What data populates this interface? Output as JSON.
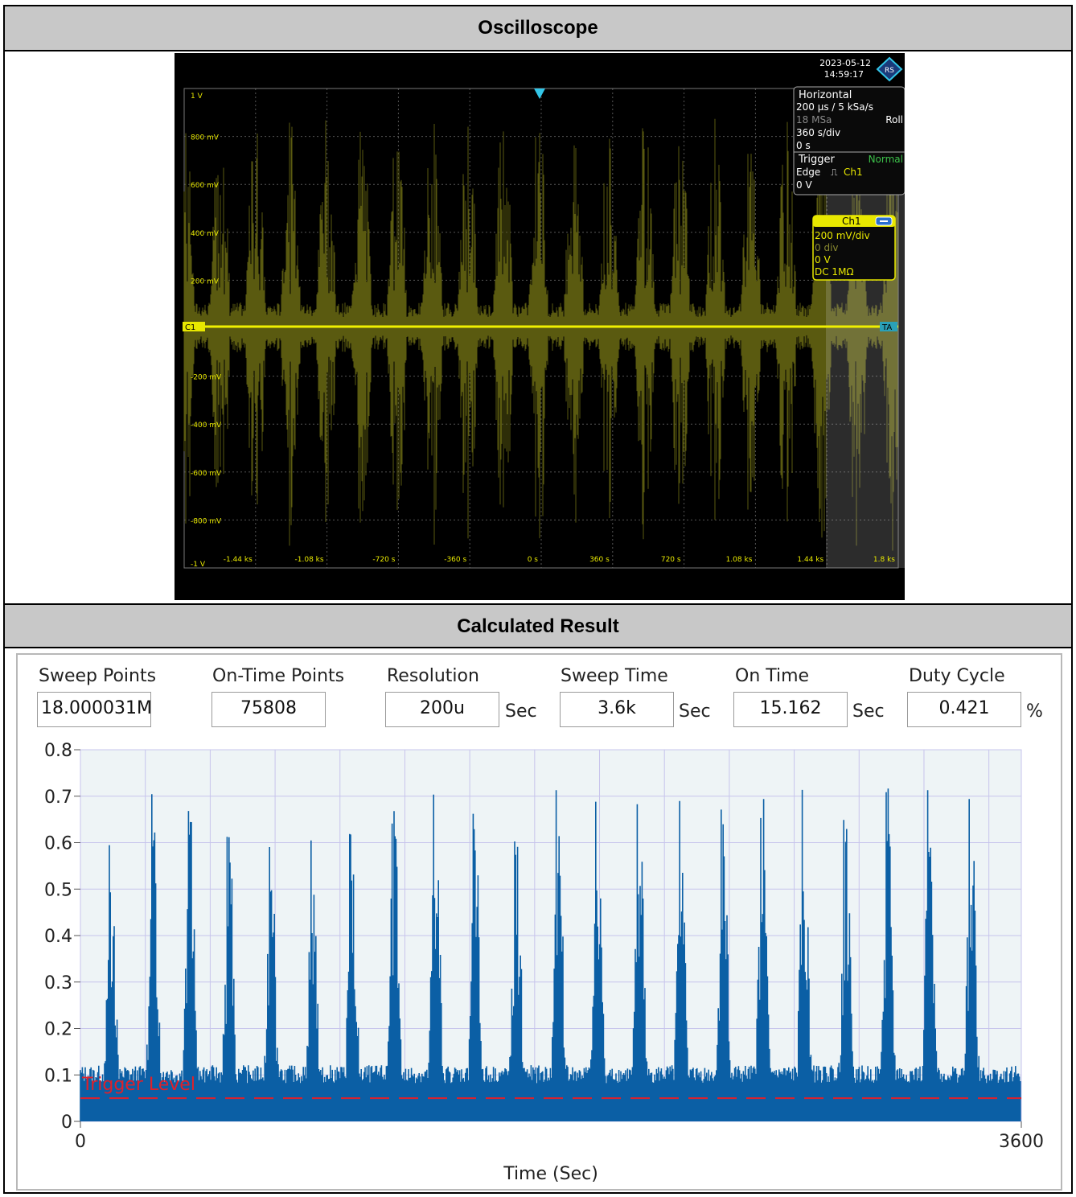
{
  "headers": {
    "oscilloscope": "Oscilloscope",
    "calculated": "Calculated Result"
  },
  "scope": {
    "date": "2023-05-12",
    "time": "14:59:17",
    "horizontal": {
      "title": "Horizontal",
      "rate": "200 µs / 5 kSa/s",
      "points": "18 MSa",
      "mode": "Roll",
      "scale": "360 s/div",
      "position": "0 s"
    },
    "trigger": {
      "title": "Trigger",
      "mode": "Normal",
      "type": "Edge",
      "source": "Ch1",
      "level": "0 V"
    },
    "ch1": {
      "name": "Ch1",
      "scale": "200 mV/div",
      "offset_div": "0 div",
      "offset_v": "0 V",
      "coupling": "DC 1MΩ"
    },
    "y_ticks": [
      "1 V",
      "800 mV",
      "600 mV",
      "400 mV",
      "200 mV",
      "-200 mV",
      "-400 mV",
      "-600 mV",
      "-800 mV",
      "-1 V"
    ],
    "x_ticks": [
      "-1.44 ks",
      "-1.08 ks",
      "-720 s",
      "-360 s",
      "0 s",
      "360 s",
      "720 s",
      "1.08 ks",
      "1.44 ks",
      "1.8 ks"
    ],
    "ch_marker": "C1",
    "trig_marker": "TA",
    "colors": {
      "trace": "#e8e800",
      "trace_dim": "#5a5a10",
      "grid": "#555555",
      "accent": "#33c6e8"
    }
  },
  "fields": {
    "sweep_points": {
      "label": "Sweep Points",
      "value": "18.000031M"
    },
    "on_time_points": {
      "label": "On-Time Points",
      "value": "75808"
    },
    "resolution": {
      "label": "Resolution",
      "value": "200u",
      "unit": "Sec"
    },
    "sweep_time": {
      "label": "Sweep Time",
      "value": "3.6k",
      "unit": "Sec"
    },
    "on_time": {
      "label": "On Time",
      "value": "15.162",
      "unit": "Sec"
    },
    "duty_cycle": {
      "label": "Duty Cycle",
      "value": "0.421",
      "unit": "%"
    }
  },
  "chart_data": {
    "type": "area",
    "xlabel": "Time (Sec)",
    "xlim": [
      0,
      3600
    ],
    "ylim": [
      0,
      0.8
    ],
    "x_ticks": [
      "0",
      "3600"
    ],
    "y_ticks": [
      "0",
      "0.1",
      "0.2",
      "0.3",
      "0.4",
      "0.5",
      "0.6",
      "0.7",
      "0.8"
    ],
    "grid": true,
    "trigger_level": {
      "label": "Trigger Level",
      "value": 0.05
    },
    "burst_times": [
      110,
      270,
      410,
      560,
      720,
      880,
      1030,
      1190,
      1350,
      1500,
      1660,
      1820,
      1970,
      2130,
      2290,
      2450,
      2600,
      2760,
      2920,
      3080,
      3240,
      3400
    ],
    "burst_peaks": [
      0.64,
      0.71,
      0.69,
      0.64,
      0.62,
      0.62,
      0.64,
      0.71,
      0.72,
      0.71,
      0.64,
      0.73,
      0.72,
      0.7,
      0.7,
      0.71,
      0.72,
      0.72,
      0.71,
      0.72,
      0.72,
      0.71
    ],
    "baseline": 0.11,
    "series_color": "#0b5fa5",
    "trigger_color": "#e0202a"
  }
}
